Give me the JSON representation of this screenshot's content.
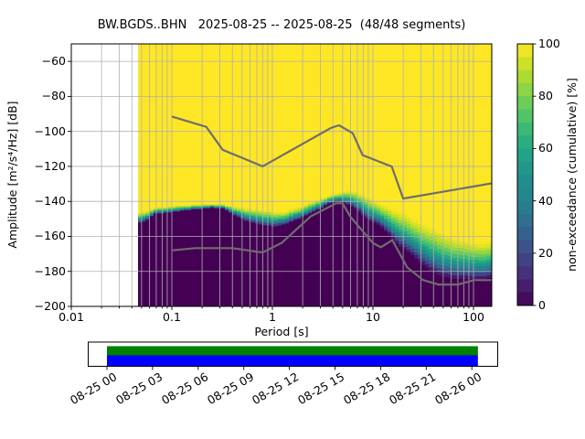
{
  "title": "BW.BGDS..BHN   2025-08-25 -- 2025-08-25  (48/48 segments)",
  "x_axis": {
    "label": "Period [s]",
    "ticks": [
      "0.01",
      "0.1",
      "1",
      "10",
      "100"
    ],
    "tick_values": [
      0.01,
      0.1,
      1,
      10,
      100
    ],
    "range": [
      0.01,
      151
    ],
    "scale": "log"
  },
  "y_axis": {
    "label": "Amplitude [m²/s⁴/Hz] [dB]",
    "ticks": [
      "−60",
      "−80",
      "−100",
      "−120",
      "−140",
      "−160",
      "−180",
      "−200"
    ],
    "tick_values": [
      -60,
      -80,
      -100,
      -120,
      -140,
      -160,
      -180,
      -200
    ],
    "range": [
      -200,
      -50
    ]
  },
  "colorbar": {
    "label": "non-exceedance (cumulative) [%]",
    "ticks": [
      "0",
      "20",
      "40",
      "60",
      "80",
      "100"
    ],
    "tick_values": [
      0,
      20,
      40,
      60,
      80,
      100
    ],
    "range": [
      0,
      100
    ],
    "steps": 20,
    "viridis": [
      [
        0.0,
        "#440154"
      ],
      [
        0.1,
        "#482878"
      ],
      [
        0.2,
        "#3e4a89"
      ],
      [
        0.3,
        "#31688e"
      ],
      [
        0.4,
        "#26828e"
      ],
      [
        0.5,
        "#21918c"
      ],
      [
        0.6,
        "#22a884"
      ],
      [
        0.7,
        "#44bf70"
      ],
      [
        0.8,
        "#7ad151"
      ],
      [
        0.9,
        "#bddf26"
      ],
      [
        1.0,
        "#fde725"
      ]
    ]
  },
  "chart_data": {
    "type": "heatmap",
    "description": "PPSD cumulative non-exceedance histogram: yellow = 100% above upper boundary, dark purple = 0% below lower boundary, viridis gradient between",
    "period_min": 0.0461,
    "period_max": 151,
    "bin_step_log10": 0.0376,
    "band_gamma": 1.5,
    "band_slices": 12,
    "boundaries": {
      "periods": [
        0.046,
        0.055,
        0.066,
        0.08,
        0.1,
        0.13,
        0.18,
        0.25,
        0.33,
        0.42,
        0.55,
        0.7,
        0.85,
        1.05,
        1.3,
        1.6,
        1.95,
        2.4,
        3.0,
        3.6,
        4.3,
        5.0,
        6.0,
        7.0,
        8.4,
        10.0,
        12.0,
        14.0,
        17.0,
        20.0,
        24.0,
        30.0,
        37.0,
        45.0,
        56.0,
        70.0,
        85.0,
        105,
        125,
        140,
        151
      ],
      "yellow_top_db": [
        -146.5,
        -145.5,
        -143.5,
        -143,
        -142.5,
        -142,
        -141.5,
        -141.3,
        -141.5,
        -142.5,
        -143.5,
        -144,
        -144.5,
        -145.5,
        -145.5,
        -144,
        -142.5,
        -140.5,
        -138,
        -136.5,
        -135.5,
        -134,
        -133.5,
        -134,
        -136,
        -139,
        -141,
        -142.5,
        -144.5,
        -146,
        -148.5,
        -151,
        -153.5,
        -156,
        -158.5,
        -160.5,
        -161.5,
        -162.5,
        -163,
        -162.5,
        -161
      ],
      "purple_top_db": [
        -152.5,
        -152,
        -147.5,
        -147,
        -146.5,
        -145.5,
        -144.5,
        -143.8,
        -144,
        -148.5,
        -151.5,
        -153,
        -154,
        -154.5,
        -153.5,
        -151.5,
        -149.5,
        -147,
        -144.5,
        -141.5,
        -140.3,
        -140.5,
        -142.5,
        -145.5,
        -149.5,
        -152,
        -154.5,
        -158,
        -163.5,
        -167,
        -170.5,
        -175.5,
        -179.5,
        -182,
        -183.5,
        -184.5,
        -184.5,
        -184.5,
        -184.5,
        -184,
        -183
      ]
    },
    "noise_models": {
      "nhnm": [
        [
          0.1,
          -91.5
        ],
        [
          0.22,
          -97.4
        ],
        [
          0.32,
          -110.5
        ],
        [
          0.8,
          -120.0
        ],
        [
          3.8,
          -98.1
        ],
        [
          4.6,
          -96.5
        ],
        [
          6.3,
          -101.0
        ],
        [
          7.9,
          -113.6
        ],
        [
          15.4,
          -120.1
        ],
        [
          20.0,
          -138.4
        ],
        [
          151.0,
          -129.7
        ]
      ],
      "nlnm": [
        [
          0.1,
          -168.0
        ],
        [
          0.17,
          -166.7
        ],
        [
          0.4,
          -166.7
        ],
        [
          0.8,
          -169.2
        ],
        [
          1.24,
          -163.7
        ],
        [
          2.4,
          -148.6
        ],
        [
          4.3,
          -141.1
        ],
        [
          5.0,
          -141.1
        ],
        [
          6.0,
          -149.0
        ],
        [
          10.0,
          -163.8
        ],
        [
          12.0,
          -166.2
        ],
        [
          15.6,
          -162.1
        ],
        [
          21.9,
          -177.7
        ],
        [
          31.6,
          -185.0
        ],
        [
          45.0,
          -187.5
        ],
        [
          70.0,
          -187.5
        ],
        [
          101.0,
          -185.0
        ],
        [
          151.0,
          -185.0
        ]
      ]
    },
    "grid": true
  },
  "timeline": {
    "labels": [
      "08-25 00",
      "08-25 03",
      "08-25 06",
      "08-25 09",
      "08-25 12",
      "08-25 15",
      "08-25 18",
      "08-25 21",
      "08-26 00"
    ],
    "tick_hours": [
      0,
      3,
      6,
      9,
      12,
      15,
      18,
      21,
      24
    ],
    "fill_start_hour": 0,
    "fill_end_hour": 24.4,
    "colors": {
      "top": "#008000",
      "bottom": "#0000ff"
    }
  },
  "colors": {
    "grid": "#b0b0b0",
    "noise_model": "#6e6e6e",
    "background": "#ffffff",
    "histogram_max": "#fde725",
    "histogram_min": "#440154",
    "spine": "#000000"
  }
}
